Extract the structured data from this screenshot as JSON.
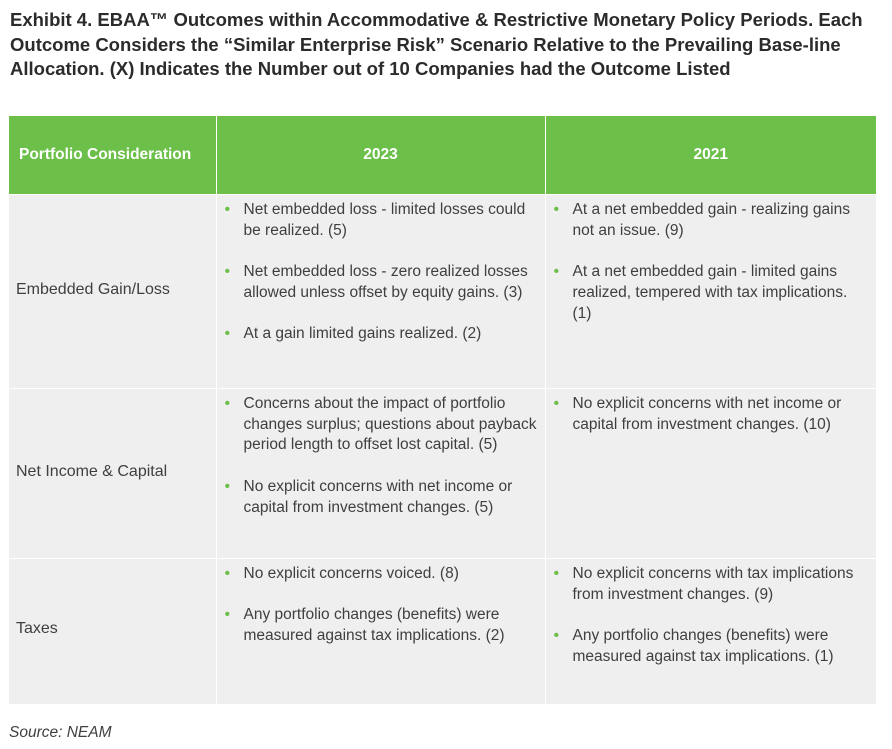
{
  "title": "Exhibit 4. EBAA™ Outcomes within Accommodative & Restrictive Monetary Policy Periods. Each Outcome Considers the “Similar Enterprise Risk” Scenario Relative to the Prevailing Base-line Allocation. (X) Indicates the Number out of 10 Companies had the Outcome Listed",
  "table": {
    "headers": [
      "Portfolio Consideration",
      "2023",
      "2021"
    ],
    "rows": [
      {
        "category": "Embedded Gain/Loss",
        "col2023": [
          "Net embedded loss - limited losses could be realized. (5)",
          "Net embedded loss - zero realized losses allowed unless offset by equity gains. (3)",
          "At a gain limited gains realized. (2)"
        ],
        "col2021": [
          "At a net embedded gain - realizing gains not an issue. (9)",
          "At a net embedded gain - limited gains realized, tempered with tax implications. (1)"
        ]
      },
      {
        "category": "Net Income & Capital",
        "col2023": [
          "Concerns about the impact of portfolio changes surplus; questions about payback period length to offset lost capital. (5)",
          "No explicit concerns with net income or capital from investment changes. (5)"
        ],
        "col2021": [
          "No explicit concerns with net income or capital from investment changes. (10)"
        ]
      },
      {
        "category": "Taxes",
        "col2023": [
          "No explicit concerns voiced. (8)",
          "Any portfolio changes (benefits) were measured against tax implications. (2)"
        ],
        "col2021": [
          "No explicit concerns with tax implications from investment changes. (9)",
          "Any portfolio changes (benefits) were measured against tax implications. (1)"
        ]
      }
    ]
  },
  "source": "Source: NEAM",
  "colors": {
    "accent": "#6cc04a",
    "cell_bg": "#efefef",
    "text": "#3f3f3f"
  }
}
